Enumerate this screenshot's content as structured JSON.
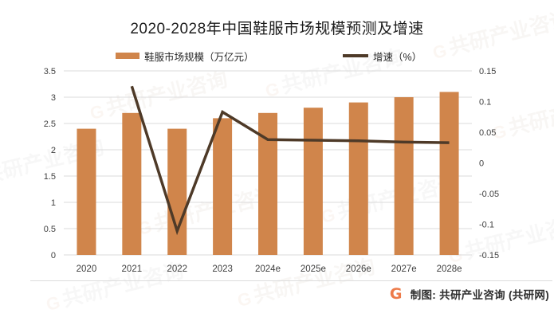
{
  "title": "2020-2028年中国鞋服市场规模预测及增速",
  "legend": [
    {
      "label": "鞋服市场规模（万亿元）",
      "type": "bar",
      "color": "#D0854B"
    },
    {
      "label": "增速（%）",
      "type": "line",
      "color": "#4E3A28"
    }
  ],
  "footer": {
    "logo_glyph": "G",
    "credit": "制图: 共研产业咨询 (共研网)"
  },
  "watermark": {
    "text": "共研产业咨询",
    "logo_glyph": "G"
  },
  "chart_data": {
    "type": "bar",
    "subtype": "combo-bar-line-dual-axis",
    "title": "2020-2028年中国鞋服市场规模预测及增速",
    "categories": [
      "2020",
      "2021",
      "2022",
      "2023",
      "2024e",
      "2025e",
      "2026e",
      "2027e",
      "2028e"
    ],
    "series": [
      {
        "name": "鞋服市场规模（万亿元）",
        "type": "bar",
        "axis": "left",
        "color": "#D0854B",
        "values": [
          2.4,
          2.7,
          2.4,
          2.6,
          2.7,
          2.8,
          2.9,
          3.0,
          3.1
        ]
      },
      {
        "name": "增速（%）",
        "type": "line",
        "axis": "right",
        "color": "#4E3A28",
        "values": [
          null,
          0.125,
          -0.111,
          0.083,
          0.038,
          0.037,
          0.036,
          0.034,
          0.033
        ]
      }
    ],
    "left_axis": {
      "min": 0,
      "max": 3.5,
      "step": 0.5,
      "tick_labels_bottom_to_top": [
        "0",
        "0.5",
        "1",
        "1.5",
        "2",
        "2.5",
        "3",
        "3.5"
      ]
    },
    "right_axis": {
      "min": -0.15,
      "max": 0.15,
      "step": 0.05,
      "tick_labels_bottom_to_top": [
        "-0.15",
        "-0.1",
        "-0.05",
        "0",
        "0.05",
        "0.1",
        "0.15"
      ]
    },
    "grid": true,
    "gridline_color": "#DBDBDB",
    "legend_position": "top"
  }
}
